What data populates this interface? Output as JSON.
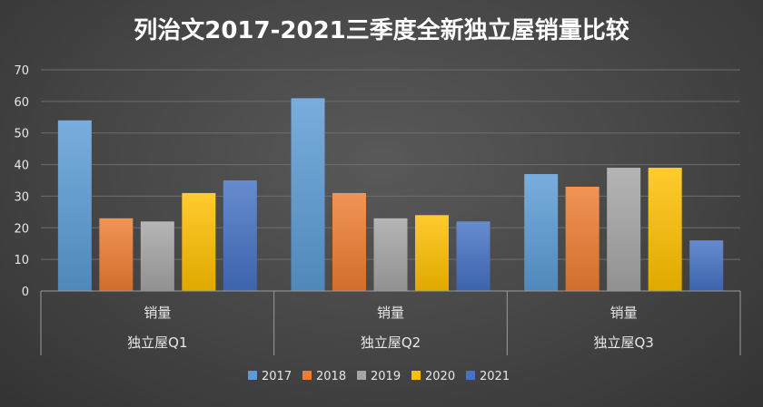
{
  "chart_data": {
    "type": "bar",
    "title": "列治文2017-2021三季度全新独立屋销量比较",
    "categories": [
      "独立屋Q1",
      "独立屋Q2",
      "独立屋Q3"
    ],
    "measure_label": "销量",
    "ylim": [
      0,
      70
    ],
    "yticks": [
      0,
      10,
      20,
      30,
      40,
      50,
      60,
      70
    ],
    "grid": true,
    "legend_position": "bottom",
    "series": [
      {
        "name": "2017",
        "color": "#5b9bd5",
        "values": [
          54,
          61,
          37
        ]
      },
      {
        "name": "2018",
        "color": "#ed7d31",
        "values": [
          23,
          31,
          33
        ]
      },
      {
        "name": "2019",
        "color": "#a5a5a5",
        "values": [
          22,
          23,
          39
        ]
      },
      {
        "name": "2020",
        "color": "#ffc000",
        "values": [
          31,
          24,
          39
        ]
      },
      {
        "name": "2021",
        "color": "#4472c4",
        "values": [
          35,
          22,
          16
        ]
      }
    ]
  }
}
